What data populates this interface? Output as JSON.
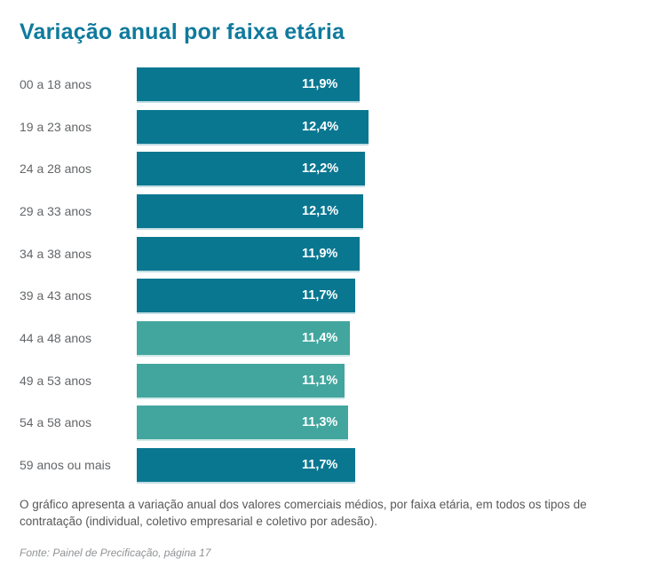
{
  "page": {
    "background_color": "#ffffff"
  },
  "header": {
    "title": "Variação anual por faixa etária",
    "title_color": "#0f7a9c"
  },
  "chart_data": {
    "type": "bar",
    "orientation": "horizontal",
    "title": "Variação anual por faixa etária",
    "xlabel": "",
    "ylabel": "",
    "xlim": [
      0,
      12.4
    ],
    "grid": false,
    "legend": "none",
    "axes_visible": false,
    "categories": [
      "00 a 18 anos",
      "19 a 23 anos",
      "24 a 28 anos",
      "29 a 33 anos",
      "34 a 38 anos",
      "39 a 43 anos",
      "44 a 48 anos",
      "49 a 53 anos",
      "54 a 58 anos",
      "59 anos ou mais"
    ],
    "values": [
      11.9,
      12.4,
      12.2,
      12.1,
      11.9,
      11.7,
      11.4,
      11.1,
      11.3,
      11.7
    ],
    "value_labels": [
      "11,9%",
      "12,4%",
      "12,2%",
      "12,1%",
      "11,9%",
      "11,7%",
      "11,4%",
      "11,1%",
      "11,3%",
      "11,7%"
    ],
    "bar_colors": [
      "#0a7791",
      "#0a7791",
      "#0a7791",
      "#0a7791",
      "#0a7791",
      "#0a7791",
      "#42a69e",
      "#42a69e",
      "#42a69e",
      "#0a7791"
    ],
    "value_label_color": "#ffffff",
    "category_label_color": "#646669"
  },
  "footer": {
    "description": "O gráfico apresenta a variação anual dos valores comerciais médios, por faixa etária, em todos os tipos de contratação (individual, coletivo empresarial e coletivo por adesão).",
    "source": "Fonte: Painel de Precificação, página 17"
  }
}
